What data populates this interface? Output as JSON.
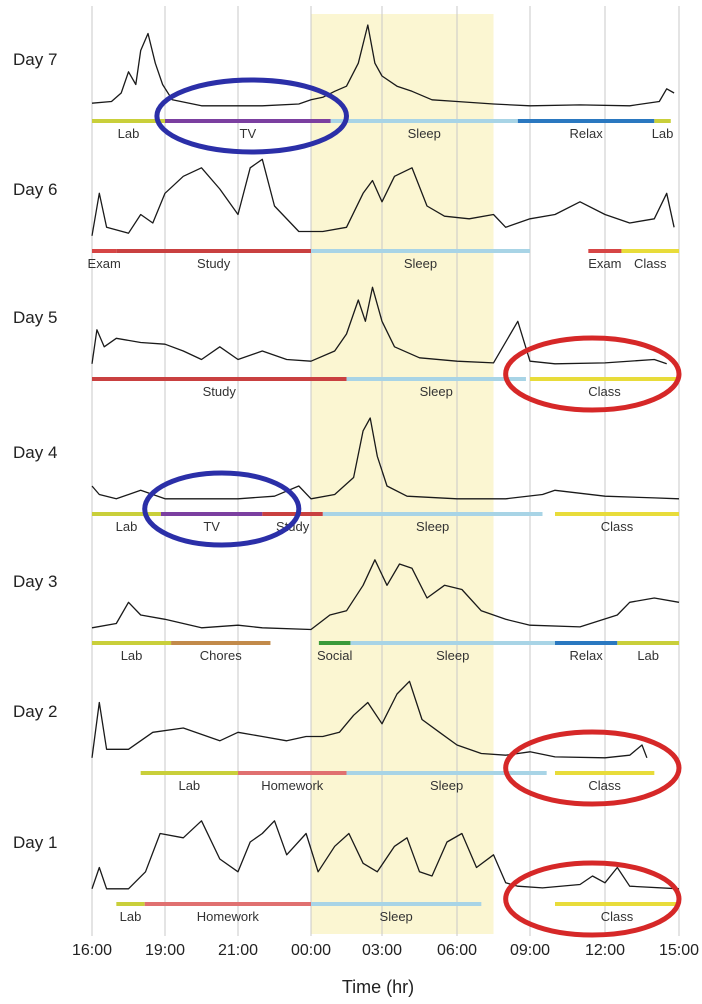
{
  "chart_data": {
    "type": "line",
    "xlabel": "Time (hr)",
    "x_ticks": [
      "16:00",
      "19:00",
      "21:00",
      "00:00",
      "03:00",
      "06:00",
      "09:00",
      "12:00",
      "15:00"
    ],
    "shaded_interval": [
      "00:00",
      "07:30"
    ],
    "days": [
      {
        "label": "Day 7",
        "trace": [
          [
            16.0,
            0.08
          ],
          [
            16.8,
            0.1
          ],
          [
            17.2,
            0.2
          ],
          [
            17.5,
            0.45
          ],
          [
            17.8,
            0.3
          ],
          [
            18.0,
            0.7
          ],
          [
            18.3,
            0.9
          ],
          [
            18.6,
            0.55
          ],
          [
            18.9,
            0.3
          ],
          [
            19.2,
            0.12
          ],
          [
            20.0,
            0.05
          ],
          [
            22.0,
            0.05
          ],
          [
            23.5,
            0.07
          ],
          [
            0.0,
            0.12
          ],
          [
            0.5,
            0.15
          ],
          [
            1.0,
            0.22
          ],
          [
            1.5,
            0.28
          ],
          [
            2.0,
            0.55
          ],
          [
            2.4,
            1.0
          ],
          [
            2.7,
            0.55
          ],
          [
            3.0,
            0.4
          ],
          [
            3.6,
            0.28
          ],
          [
            4.2,
            0.22
          ],
          [
            5.0,
            0.12
          ],
          [
            6.0,
            0.1
          ],
          [
            7.5,
            0.07
          ],
          [
            9.0,
            0.05
          ],
          [
            11.0,
            0.06
          ],
          [
            13.0,
            0.05
          ],
          [
            14.2,
            0.1
          ],
          [
            14.5,
            0.25
          ],
          [
            14.8,
            0.2
          ]
        ],
        "activities": [
          {
            "label": "Lab",
            "start": "16:00",
            "end": "19:00",
            "color": "#c9cf3a"
          },
          {
            "label": "TV",
            "start": "19:00",
            "end": "00:50",
            "color": "#7b3fa0"
          },
          {
            "label": "Sleep",
            "start": "00:50",
            "end": "08:30",
            "color": "#a8d4e6"
          },
          {
            "label": "Relax",
            "start": "08:30",
            "end": "14:00",
            "color": "#2a78c0"
          },
          {
            "label": "Lab",
            "start": "14:00",
            "end": "14:40",
            "color": "#c9cf3a"
          }
        ],
        "highlight": {
          "color": "blue",
          "start": "18:40",
          "end": "01:30"
        }
      },
      {
        "label": "Day 6",
        "trace": [
          [
            16.0,
            0.05
          ],
          [
            16.3,
            0.55
          ],
          [
            16.6,
            0.15
          ],
          [
            17.5,
            0.08
          ],
          [
            18.0,
            0.3
          ],
          [
            18.5,
            0.2
          ],
          [
            19.0,
            0.55
          ],
          [
            19.5,
            0.75
          ],
          [
            20.0,
            0.85
          ],
          [
            20.5,
            0.6
          ],
          [
            21.0,
            0.3
          ],
          [
            21.5,
            0.85
          ],
          [
            22.0,
            0.95
          ],
          [
            22.5,
            0.4
          ],
          [
            23.5,
            0.1
          ],
          [
            0.5,
            0.1
          ],
          [
            1.5,
            0.15
          ],
          [
            2.2,
            0.55
          ],
          [
            2.6,
            0.7
          ],
          [
            3.0,
            0.45
          ],
          [
            3.5,
            0.75
          ],
          [
            4.2,
            0.85
          ],
          [
            4.8,
            0.4
          ],
          [
            5.5,
            0.28
          ],
          [
            6.5,
            0.25
          ],
          [
            7.5,
            0.3
          ],
          [
            8.0,
            0.15
          ],
          [
            9.0,
            0.25
          ],
          [
            10.0,
            0.3
          ],
          [
            11.0,
            0.45
          ],
          [
            12.0,
            0.3
          ],
          [
            13.0,
            0.2
          ],
          [
            14.0,
            0.25
          ],
          [
            14.5,
            0.55
          ],
          [
            14.8,
            0.15
          ]
        ],
        "activities": [
          {
            "label": "Exam",
            "start": "16:00",
            "end": "17:00",
            "color": "#d64545"
          },
          {
            "label": "Study",
            "start": "17:00",
            "end": "00:00",
            "color": "#c94040"
          },
          {
            "label": "Sleep",
            "start": "00:00",
            "end": "09:00",
            "color": "#a8d4e6"
          },
          {
            "label": "Exam",
            "start": "11:20",
            "end": "12:40",
            "color": "#d64545"
          },
          {
            "label": "Class",
            "start": "12:40",
            "end": "15:00",
            "color": "#e8dc3a"
          }
        ]
      },
      {
        "label": "Day 5",
        "trace": [
          [
            16.0,
            0.05
          ],
          [
            16.2,
            0.45
          ],
          [
            16.5,
            0.25
          ],
          [
            17.0,
            0.35
          ],
          [
            18.0,
            0.3
          ],
          [
            19.0,
            0.28
          ],
          [
            19.5,
            0.2
          ],
          [
            20.0,
            0.1
          ],
          [
            20.5,
            0.25
          ],
          [
            21.0,
            0.1
          ],
          [
            22.0,
            0.2
          ],
          [
            23.0,
            0.1
          ],
          [
            0.0,
            0.08
          ],
          [
            1.0,
            0.2
          ],
          [
            1.5,
            0.4
          ],
          [
            2.0,
            0.8
          ],
          [
            2.3,
            0.55
          ],
          [
            2.6,
            0.95
          ],
          [
            3.0,
            0.55
          ],
          [
            3.5,
            0.25
          ],
          [
            4.5,
            0.12
          ],
          [
            6.0,
            0.08
          ],
          [
            7.5,
            0.06
          ],
          [
            8.5,
            0.55
          ],
          [
            9.0,
            0.08
          ],
          [
            10.0,
            0.05
          ],
          [
            12.0,
            0.06
          ],
          [
            14.0,
            0.1
          ],
          [
            14.5,
            0.05
          ]
        ],
        "activities": [
          {
            "label": "Study",
            "start": "16:00",
            "end": "01:30",
            "color": "#c94040"
          },
          {
            "label": "Sleep",
            "start": "01:30",
            "end": "08:50",
            "color": "#a8d4e6"
          },
          {
            "label": "Class",
            "start": "09:00",
            "end": "15:00",
            "color": "#e8dc3a"
          }
        ],
        "highlight": {
          "color": "red",
          "start": "08:00",
          "end": "15:00"
        }
      },
      {
        "label": "Day 4",
        "trace": [
          [
            16.0,
            0.2
          ],
          [
            16.3,
            0.1
          ],
          [
            17.0,
            0.05
          ],
          [
            18.0,
            0.15
          ],
          [
            19.0,
            0.05
          ],
          [
            21.0,
            0.05
          ],
          [
            22.5,
            0.08
          ],
          [
            23.5,
            0.2
          ],
          [
            0.0,
            0.05
          ],
          [
            1.0,
            0.1
          ],
          [
            1.8,
            0.3
          ],
          [
            2.2,
            0.85
          ],
          [
            2.5,
            1.0
          ],
          [
            2.8,
            0.55
          ],
          [
            3.2,
            0.2
          ],
          [
            4.0,
            0.08
          ],
          [
            6.0,
            0.05
          ],
          [
            8.0,
            0.05
          ],
          [
            9.5,
            0.1
          ],
          [
            10.0,
            0.15
          ],
          [
            12.0,
            0.08
          ],
          [
            14.0,
            0.06
          ],
          [
            15.0,
            0.05
          ]
        ],
        "activities": [
          {
            "label": "Lab",
            "start": "16:00",
            "end": "18:50",
            "color": "#c9cf3a"
          },
          {
            "label": "TV",
            "start": "18:50",
            "end": "22:00",
            "color": "#7b3fa0"
          },
          {
            "label": "Study",
            "start": "22:00",
            "end": "00:30",
            "color": "#c94040"
          },
          {
            "label": "Sleep",
            "start": "00:30",
            "end": "09:30",
            "color": "#a8d4e6"
          },
          {
            "label": "Class",
            "start": "10:00",
            "end": "15:00",
            "color": "#e8dc3a"
          }
        ],
        "highlight": {
          "color": "blue",
          "start": "18:10",
          "end": "23:30"
        }
      },
      {
        "label": "Day 3",
        "trace": [
          [
            16.0,
            0.05
          ],
          [
            17.0,
            0.1
          ],
          [
            17.5,
            0.35
          ],
          [
            18.0,
            0.2
          ],
          [
            19.0,
            0.15
          ],
          [
            20.0,
            0.05
          ],
          [
            21.0,
            0.08
          ],
          [
            22.0,
            0.05
          ],
          [
            0.0,
            0.03
          ],
          [
            0.8,
            0.2
          ],
          [
            1.5,
            0.25
          ],
          [
            2.2,
            0.55
          ],
          [
            2.7,
            0.85
          ],
          [
            3.2,
            0.55
          ],
          [
            3.7,
            0.8
          ],
          [
            4.2,
            0.75
          ],
          [
            4.8,
            0.4
          ],
          [
            5.5,
            0.55
          ],
          [
            6.2,
            0.5
          ],
          [
            7.0,
            0.25
          ],
          [
            8.0,
            0.15
          ],
          [
            9.0,
            0.08
          ],
          [
            11.0,
            0.06
          ],
          [
            12.5,
            0.2
          ],
          [
            13.0,
            0.35
          ],
          [
            14.0,
            0.4
          ],
          [
            15.0,
            0.35
          ]
        ],
        "activities": [
          {
            "label": "Lab",
            "start": "16:00",
            "end": "19:10",
            "color": "#c9cf3a"
          },
          {
            "label": "Chores",
            "start": "19:10",
            "end": "22:20",
            "color": "#c28a4a"
          },
          {
            "label": "Social",
            "start": "00:20",
            "end": "01:40",
            "color": "#3a9a3a"
          },
          {
            "label": "Sleep",
            "start": "01:40",
            "end": "10:00",
            "color": "#a8d4e6"
          },
          {
            "label": "Relax",
            "start": "10:00",
            "end": "12:30",
            "color": "#2a78c0"
          },
          {
            "label": "Lab",
            "start": "12:30",
            "end": "15:00",
            "color": "#c9cf3a"
          }
        ]
      },
      {
        "label": "Day 2",
        "trace": [
          [
            16.0,
            0.05
          ],
          [
            16.3,
            0.7
          ],
          [
            16.6,
            0.15
          ],
          [
            17.5,
            0.15
          ],
          [
            18.5,
            0.35
          ],
          [
            19.5,
            0.4
          ],
          [
            20.5,
            0.25
          ],
          [
            21.0,
            0.35
          ],
          [
            22.0,
            0.3
          ],
          [
            23.0,
            0.25
          ],
          [
            23.8,
            0.3
          ],
          [
            0.5,
            0.3
          ],
          [
            1.2,
            0.35
          ],
          [
            1.8,
            0.55
          ],
          [
            2.4,
            0.7
          ],
          [
            3.0,
            0.45
          ],
          [
            3.6,
            0.8
          ],
          [
            4.1,
            0.95
          ],
          [
            4.6,
            0.5
          ],
          [
            5.3,
            0.35
          ],
          [
            6.0,
            0.2
          ],
          [
            7.0,
            0.1
          ],
          [
            8.0,
            0.08
          ],
          [
            9.0,
            0.12
          ],
          [
            10.0,
            0.06
          ],
          [
            12.0,
            0.05
          ],
          [
            13.0,
            0.08
          ],
          [
            13.5,
            0.2
          ],
          [
            13.7,
            0.05
          ]
        ],
        "activities": [
          {
            "label": "Lab",
            "start": "18:00",
            "end": "21:00",
            "color": "#c9cf3a"
          },
          {
            "label": "Homework",
            "start": "21:00",
            "end": "01:30",
            "color": "#e07070"
          },
          {
            "label": "Sleep",
            "start": "01:30",
            "end": "09:40",
            "color": "#a8d4e6"
          },
          {
            "label": "Class",
            "start": "10:00",
            "end": "14:00",
            "color": "#e8dc3a"
          }
        ],
        "highlight": {
          "color": "red",
          "start": "08:00",
          "end": "15:00"
        }
      },
      {
        "label": "Day 1",
        "trace": [
          [
            16.0,
            0.05
          ],
          [
            16.3,
            0.3
          ],
          [
            16.6,
            0.05
          ],
          [
            17.5,
            0.05
          ],
          [
            18.2,
            0.25
          ],
          [
            18.8,
            0.7
          ],
          [
            19.5,
            0.65
          ],
          [
            20.0,
            0.85
          ],
          [
            20.5,
            0.4
          ],
          [
            21.0,
            0.25
          ],
          [
            21.5,
            0.6
          ],
          [
            22.0,
            0.7
          ],
          [
            22.5,
            0.85
          ],
          [
            23.0,
            0.45
          ],
          [
            23.8,
            0.7
          ],
          [
            0.3,
            0.25
          ],
          [
            1.0,
            0.55
          ],
          [
            1.6,
            0.7
          ],
          [
            2.2,
            0.35
          ],
          [
            2.8,
            0.25
          ],
          [
            3.5,
            0.55
          ],
          [
            4.0,
            0.65
          ],
          [
            4.5,
            0.25
          ],
          [
            5.0,
            0.2
          ],
          [
            5.6,
            0.6
          ],
          [
            6.2,
            0.7
          ],
          [
            6.8,
            0.3
          ],
          [
            7.5,
            0.45
          ],
          [
            8.0,
            0.12
          ],
          [
            8.5,
            0.08
          ],
          [
            9.5,
            0.06
          ],
          [
            11.0,
            0.1
          ],
          [
            11.5,
            0.2
          ],
          [
            12.0,
            0.12
          ],
          [
            12.5,
            0.3
          ],
          [
            13.0,
            0.08
          ],
          [
            15.0,
            0.05
          ]
        ],
        "activities": [
          {
            "label": "Lab",
            "start": "17:00",
            "end": "18:10",
            "color": "#c9cf3a"
          },
          {
            "label": "Homework",
            "start": "18:10",
            "end": "00:00",
            "color": "#e07070"
          },
          {
            "label": "Sleep",
            "start": "00:00",
            "end": "07:00",
            "color": "#a8d4e6"
          },
          {
            "label": "Class",
            "start": "10:00",
            "end": "15:00",
            "color": "#e8dc3a"
          }
        ],
        "highlight": {
          "color": "red",
          "start": "08:00",
          "end": "15:00"
        }
      }
    ]
  }
}
